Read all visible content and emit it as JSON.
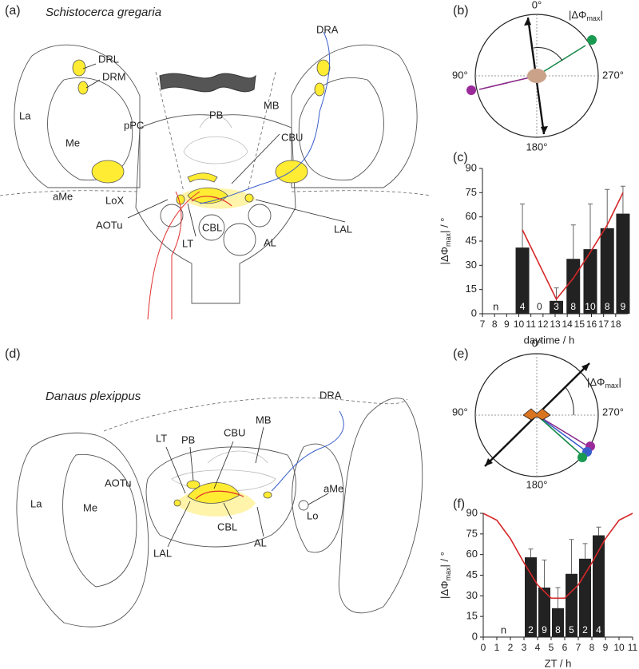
{
  "panel_a": {
    "letter": "(a)",
    "title": "Schistocerca gregaria",
    "labels": [
      "DRL",
      "DRM",
      "La",
      "Me",
      "pPC",
      "PB",
      "MB",
      "CBU",
      "DRA",
      "aMe",
      "LoX",
      "AOTu",
      "LT",
      "CBL",
      "LAL",
      "AL"
    ]
  },
  "panel_b": {
    "letter": "(b)",
    "top": "0°",
    "bottom": "180°",
    "left": "90°",
    "right": "270°",
    "angle_label": {
      "text": "|ΔΦ",
      "sub": "max",
      "end": "|"
    }
  },
  "panel_d": {
    "letter": "(d)",
    "title": "Danaus plexippus",
    "labels": [
      "DRA",
      "MB",
      "LT",
      "PB",
      "CBU",
      "La",
      "AOTu",
      "Me",
      "aMe",
      "Lo",
      "LAL",
      "CBL",
      "AL"
    ]
  },
  "panel_e": {
    "letter": "(e)",
    "top": "0°",
    "bottom": "180°",
    "left": "90°",
    "right": "270°",
    "angle_label": {
      "text": "|ΔΦ",
      "sub": "max",
      "end": "|"
    }
  },
  "chart_data": [
    {
      "type": "bar",
      "letter": "(c)",
      "x": [
        10.3,
        11.7,
        13.1,
        14.5,
        15.9,
        17.3,
        18.6
      ],
      "values": [
        41,
        null,
        8,
        34,
        40,
        53,
        62
      ],
      "errors": [
        27,
        null,
        8,
        21,
        28,
        24,
        17
      ],
      "sample_sizes": [
        "4",
        "0",
        "3",
        "8",
        "10",
        "8",
        "9"
      ],
      "n_label": "n",
      "color": "#222222",
      "fit_line": {
        "color": "#d62728",
        "x": [
          10.3,
          13.1,
          14.5,
          15.9,
          17.3,
          18.6
        ],
        "values": [
          52,
          9,
          22,
          38,
          55,
          75
        ]
      },
      "xlim": [
        7,
        19
      ],
      "xticks": [
        7,
        8,
        9,
        10,
        11,
        12,
        13,
        14,
        15,
        16,
        17,
        18
      ],
      "ylim": [
        0,
        90
      ],
      "yticks": [
        0,
        15,
        30,
        45,
        60,
        75,
        90
      ],
      "xlabel": "daytime / h",
      "ylabel": {
        "text": "|ΔΦ",
        "sub": "max",
        "end": "| / °"
      }
    },
    {
      "type": "bar",
      "letter": "(f)",
      "x": [
        3.5,
        4.5,
        5.5,
        6.5,
        7.5,
        8.5
      ],
      "values": [
        58,
        36,
        21,
        46,
        57,
        74
      ],
      "errors": [
        6,
        20,
        15,
        25,
        11,
        6
      ],
      "sample_sizes": [
        "2",
        "9",
        "8",
        "5",
        "2",
        "4"
      ],
      "n_label": "n",
      "color": "#222222",
      "fit_line": {
        "color": "#d62728",
        "x": [
          0,
          1,
          2,
          3,
          4,
          5,
          6,
          7,
          8,
          9,
          10,
          11
        ],
        "values": [
          90,
          85,
          71.6,
          54,
          37.9,
          28.3,
          28.3,
          37.9,
          54,
          71.6,
          85,
          90
        ]
      },
      "xlim": [
        0,
        11
      ],
      "xticks": [
        0,
        1,
        2,
        3,
        4,
        5,
        6,
        7,
        8,
        9,
        10,
        11
      ],
      "ylim": [
        0,
        90
      ],
      "yticks": [
        0,
        15,
        30,
        45,
        60,
        75,
        90
      ],
      "xlabel": "ZT / h",
      "ylabel": {
        "text": "|ΔΦ",
        "sub": "max",
        "end": "| / °"
      }
    }
  ]
}
